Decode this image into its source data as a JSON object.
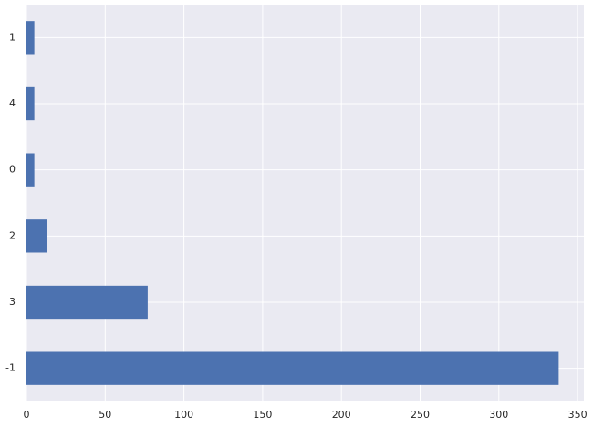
{
  "chart_data": {
    "type": "barh",
    "categories": [
      "1",
      "4",
      "0",
      "2",
      "3",
      "-1"
    ],
    "values": [
      5,
      5,
      5,
      13,
      77,
      338
    ],
    "color": "#4c72b0",
    "xlim": [
      0,
      354
    ],
    "xticks": [
      0,
      50,
      100,
      150,
      200,
      250,
      300,
      350
    ],
    "grid": true
  }
}
